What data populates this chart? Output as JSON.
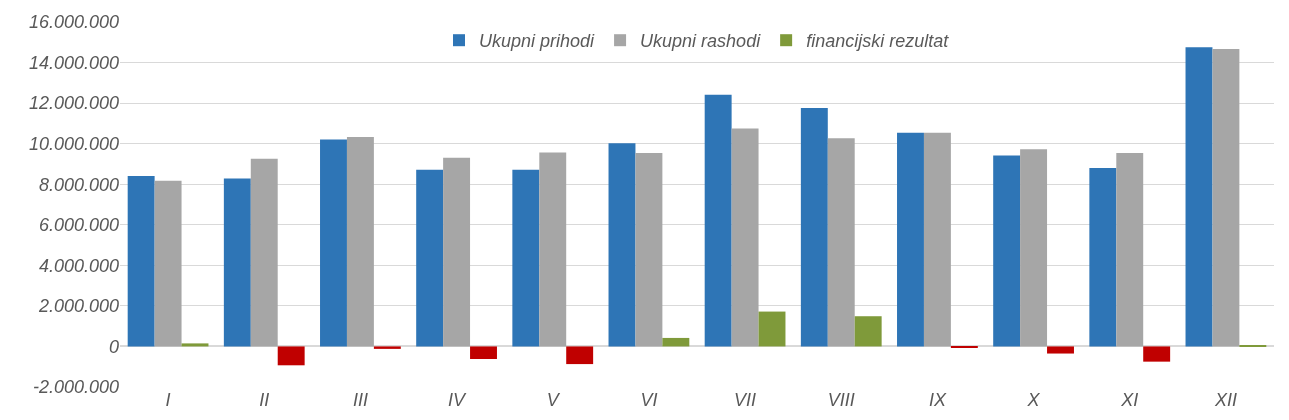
{
  "chart_data": {
    "type": "bar",
    "categories": [
      "I",
      "II",
      "III",
      "IV",
      "V",
      "VI",
      "VII",
      "VIII",
      "IX",
      "X",
      "XI",
      "XII"
    ],
    "series": [
      {
        "name": "Ukupni prihodi",
        "color": "#2e75b6",
        "values": [
          8400000,
          8280000,
          10210000,
          8710000,
          8710000,
          10020000,
          12410000,
          11760000,
          10540000,
          9420000,
          8800000,
          14750000
        ]
      },
      {
        "name": "Ukupni rashodi",
        "color": "#a6a6a6",
        "values": [
          8170000,
          9250000,
          10330000,
          9310000,
          9560000,
          9540000,
          10750000,
          10270000,
          10540000,
          9730000,
          9540000,
          14670000
        ]
      },
      {
        "name": "financijski rezultat",
        "color": "#7f9a3a",
        "colors": [
          "#7f9a3a",
          "#c00000",
          "#c00000",
          "#c00000",
          "#c00000",
          "#7f9a3a",
          "#7f9a3a",
          "#7f9a3a",
          "#c00000",
          "#c00000",
          "#c00000",
          "#7f9a3a"
        ],
        "values": [
          150000,
          -930000,
          -120000,
          -620000,
          -870000,
          420000,
          1720000,
          1490000,
          -50000,
          -350000,
          -750000,
          60000
        ]
      }
    ],
    "ylim": [
      -2000000,
      16000000
    ],
    "yticks": [
      {
        "value": -2000000,
        "label": "-2.000.000"
      },
      {
        "value": 0,
        "label": "0"
      },
      {
        "value": 2000000,
        "label": "2.000.000"
      },
      {
        "value": 4000000,
        "label": "4.000.000"
      },
      {
        "value": 6000000,
        "label": "6.000.000"
      },
      {
        "value": 8000000,
        "label": "8.000.000"
      },
      {
        "value": 10000000,
        "label": "10.000.000"
      },
      {
        "value": 12000000,
        "label": "12.000.000"
      },
      {
        "value": 14000000,
        "label": "14.000.000"
      },
      {
        "value": 16000000,
        "label": "16.000.000"
      }
    ],
    "grid": "y",
    "legend": "top"
  }
}
